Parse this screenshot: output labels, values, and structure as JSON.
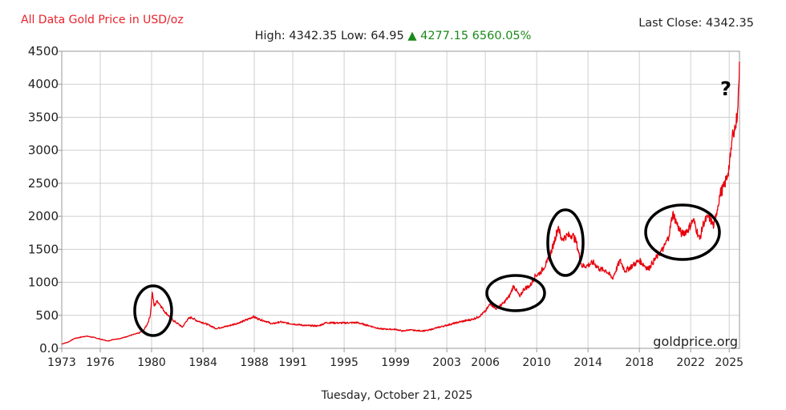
{
  "header": {
    "title": "All Data Gold Price in USD/oz",
    "title_color": "#e8232a",
    "last_close_label": "Last Close: 4342.35",
    "stats_prefix": "High: 4342.35 Low: 64.95",
    "stats_arrow": "▲",
    "stats_change": "4277.15 6560.05%",
    "stats_change_color": "#1a8a1a"
  },
  "footer": {
    "date": "Tuesday, October 21, 2025",
    "watermark": "goldprice.org"
  },
  "chart_data": {
    "type": "line",
    "title": "All Data Gold Price in USD/oz",
    "xlabel": "",
    "ylabel": "",
    "xlim": [
      1973,
      2025.8
    ],
    "ylim": [
      0,
      4500
    ],
    "x_ticks": [
      1973,
      1976,
      1980,
      1984,
      1988,
      1991,
      1995,
      1999,
      2003,
      2006,
      2010,
      2014,
      2018,
      2022,
      2025
    ],
    "y_ticks": [
      0,
      500,
      1000,
      1500,
      2000,
      2500,
      3000,
      3500,
      4000,
      4500
    ],
    "y_tick_labels": [
      "0.0",
      "500",
      "1000",
      "1500",
      "2000",
      "2500",
      "3000",
      "3500",
      "4000",
      "4500"
    ],
    "grid": true,
    "line_color": "#e8000b",
    "series": [
      {
        "values": [
          [
            1973.0,
            65
          ],
          [
            1973.5,
            95
          ],
          [
            1974.0,
            150
          ],
          [
            1974.9,
            185
          ],
          [
            1975.5,
            165
          ],
          [
            1976.0,
            140
          ],
          [
            1976.6,
            110
          ],
          [
            1977.0,
            135
          ],
          [
            1977.6,
            150
          ],
          [
            1978.0,
            175
          ],
          [
            1978.6,
            210
          ],
          [
            1979.0,
            230
          ],
          [
            1979.4,
            280
          ],
          [
            1979.7,
            380
          ],
          [
            1979.9,
            500
          ],
          [
            1980.05,
            850
          ],
          [
            1980.2,
            640
          ],
          [
            1980.45,
            720
          ],
          [
            1980.7,
            650
          ],
          [
            1981.0,
            560
          ],
          [
            1981.4,
            480
          ],
          [
            1981.7,
            420
          ],
          [
            1982.0,
            380
          ],
          [
            1982.4,
            320
          ],
          [
            1982.8,
            440
          ],
          [
            1983.1,
            470
          ],
          [
            1983.5,
            420
          ],
          [
            1984.0,
            390
          ],
          [
            1984.5,
            350
          ],
          [
            1985.0,
            300
          ],
          [
            1985.5,
            320
          ],
          [
            1986.0,
            340
          ],
          [
            1986.5,
            370
          ],
          [
            1987.0,
            400
          ],
          [
            1987.5,
            440
          ],
          [
            1987.9,
            480
          ],
          [
            1988.4,
            440
          ],
          [
            1988.9,
            410
          ],
          [
            1989.4,
            370
          ],
          [
            1990.0,
            400
          ],
          [
            1990.6,
            380
          ],
          [
            1991.0,
            370
          ],
          [
            1992.0,
            345
          ],
          [
            1993.0,
            340
          ],
          [
            1993.6,
            390
          ],
          [
            1994.5,
            385
          ],
          [
            1995.0,
            385
          ],
          [
            1996.0,
            390
          ],
          [
            1996.6,
            360
          ],
          [
            1997.0,
            340
          ],
          [
            1997.8,
            295
          ],
          [
            1998.5,
            290
          ],
          [
            1999.0,
            287
          ],
          [
            1999.6,
            260
          ],
          [
            2000.0,
            280
          ],
          [
            2000.6,
            270
          ],
          [
            2001.0,
            265
          ],
          [
            2001.5,
            270
          ],
          [
            2002.0,
            300
          ],
          [
            2003.0,
            350
          ],
          [
            2004.0,
            400
          ],
          [
            2005.0,
            440
          ],
          [
            2005.5,
            480
          ],
          [
            2006.0,
            560
          ],
          [
            2006.4,
            680
          ],
          [
            2006.8,
            600
          ],
          [
            2007.4,
            680
          ],
          [
            2007.9,
            800
          ],
          [
            2008.2,
            950
          ],
          [
            2008.7,
            780
          ],
          [
            2009.0,
            900
          ],
          [
            2009.5,
            950
          ],
          [
            2009.9,
            1100
          ],
          [
            2010.3,
            1150
          ],
          [
            2010.8,
            1300
          ],
          [
            2011.2,
            1500
          ],
          [
            2011.7,
            1850
          ],
          [
            2011.9,
            1650
          ],
          [
            2012.3,
            1700
          ],
          [
            2012.8,
            1720
          ],
          [
            2013.1,
            1600
          ],
          [
            2013.5,
            1250
          ],
          [
            2013.9,
            1250
          ],
          [
            2014.4,
            1300
          ],
          [
            2014.9,
            1200
          ],
          [
            2015.4,
            1180
          ],
          [
            2015.9,
            1060
          ],
          [
            2016.5,
            1330
          ],
          [
            2016.9,
            1170
          ],
          [
            2017.5,
            1260
          ],
          [
            2018.0,
            1330
          ],
          [
            2018.7,
            1200
          ],
          [
            2019.0,
            1290
          ],
          [
            2019.5,
            1420
          ],
          [
            2019.9,
            1520
          ],
          [
            2020.3,
            1700
          ],
          [
            2020.6,
            2050
          ],
          [
            2021.0,
            1850
          ],
          [
            2021.3,
            1730
          ],
          [
            2021.8,
            1800
          ],
          [
            2022.2,
            1950
          ],
          [
            2022.7,
            1650
          ],
          [
            2023.0,
            1900
          ],
          [
            2023.4,
            2000
          ],
          [
            2023.8,
            1850
          ],
          [
            2024.0,
            2050
          ],
          [
            2024.3,
            2350
          ],
          [
            2024.6,
            2450
          ],
          [
            2024.9,
            2650
          ],
          [
            2025.1,
            2900
          ],
          [
            2025.3,
            3300
          ],
          [
            2025.5,
            3350
          ],
          [
            2025.65,
            3600
          ],
          [
            2025.75,
            4000
          ],
          [
            2025.8,
            4342
          ]
        ]
      }
    ],
    "annotations": [
      {
        "type": "ellipse",
        "label": "1980 peak"
      },
      {
        "type": "ellipse",
        "label": "2008 rise"
      },
      {
        "type": "ellipse",
        "label": "2011 peak"
      },
      {
        "type": "ellipse",
        "label": "2020-2023 plateau"
      },
      {
        "type": "text",
        "text": "?"
      }
    ]
  }
}
